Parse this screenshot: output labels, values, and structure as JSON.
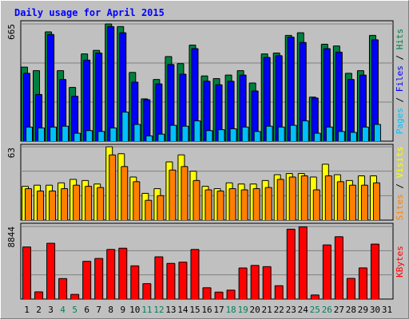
{
  "chart_data": {
    "type": "bar",
    "title": "Daily usage for April 2015",
    "days": [
      "1",
      "2",
      "3",
      "4",
      "5",
      "6",
      "7",
      "8",
      "9",
      "10",
      "11",
      "12",
      "13",
      "14",
      "15",
      "16",
      "17",
      "18",
      "19",
      "20",
      "21",
      "22",
      "23",
      "24",
      "25",
      "26",
      "27",
      "28",
      "29",
      "30",
      "31"
    ],
    "weekend_days": [
      "4",
      "5",
      "11",
      "12",
      "18",
      "19",
      "25",
      "26"
    ],
    "panels": [
      {
        "id": "hits",
        "max_label": "665",
        "ymax": 665,
        "series": [
          {
            "name": "Hits",
            "color": "#008040",
            "values": [
              420,
              400,
              620,
              400,
              305,
              495,
              515,
              665,
              650,
              390,
              240,
              350,
              480,
              440,
              545,
              370,
              355,
              375,
              400,
              330,
              495,
              500,
              600,
              615,
              250,
              550,
              540,
              385,
              400,
              600,
              0
            ]
          },
          {
            "name": "Files",
            "color": "#0000FF",
            "values": [
              385,
              265,
              605,
              350,
              255,
              460,
              500,
              650,
              615,
              335,
              235,
              325,
              435,
              380,
              525,
              340,
              320,
              340,
              375,
              285,
              475,
              485,
              590,
              560,
              245,
              525,
              505,
              350,
              375,
              575,
              0
            ]
          },
          {
            "name": "Pages",
            "color": "#00C0FF",
            "values": [
              80,
              75,
              80,
              85,
              45,
              60,
              55,
              75,
              165,
              95,
              30,
              40,
              90,
              85,
              115,
              60,
              65,
              70,
              80,
              55,
              85,
              80,
              90,
              115,
              45,
              80,
              55,
              50,
              80,
              95,
              0
            ]
          }
        ]
      },
      {
        "id": "visits",
        "max_label": "63",
        "ymax": 63,
        "series": [
          {
            "name": "Visits",
            "color": "#FFFF00",
            "values": [
              29,
              30,
              30,
              32,
              35,
              34,
              31,
              63,
              57,
              37,
              23,
              27,
              50,
              56,
              42,
              29,
              27,
              32,
              31,
              31,
              34,
              39,
              40,
              40,
              37,
              48,
              39,
              34,
              38,
              38,
              0
            ]
          },
          {
            "name": "Sites",
            "color": "#FF8000",
            "values": [
              27,
              25,
              25,
              27,
              30,
              29,
              28,
              56,
              46,
              33,
              17,
              21,
              43,
              46,
              34,
              26,
              25,
              27,
              26,
              27,
              28,
              35,
              37,
              38,
              26,
              38,
              33,
              30,
              30,
              32,
              0
            ]
          }
        ]
      },
      {
        "id": "kbytes",
        "max_label": "8844",
        "ymax": 8844,
        "series": [
          {
            "name": "KBytes",
            "color": "#FF0000",
            "values": [
              6350,
              880,
              6800,
              2500,
              570,
              4600,
              4950,
              6050,
              6200,
              4050,
              1880,
              5150,
              4350,
              4500,
              6050,
              1380,
              850,
              1090,
              3790,
              4100,
              3950,
              1630,
              8520,
              8800,
              500,
              6600,
              7600,
              2520,
              3800,
              6700,
              0
            ]
          }
        ]
      }
    ],
    "legend": {
      "hits_label": "Hits",
      "files_label": "Files",
      "pages_label": "Pages",
      "visits_label": "Visits",
      "sites_label": "Sites",
      "kbytes_label": "KBytes",
      "separator": "/"
    },
    "colors": {
      "background": "#C0C0C0",
      "title": "#0000FF",
      "weekday_label": "#000000",
      "weekend_label": "#00805C"
    }
  }
}
